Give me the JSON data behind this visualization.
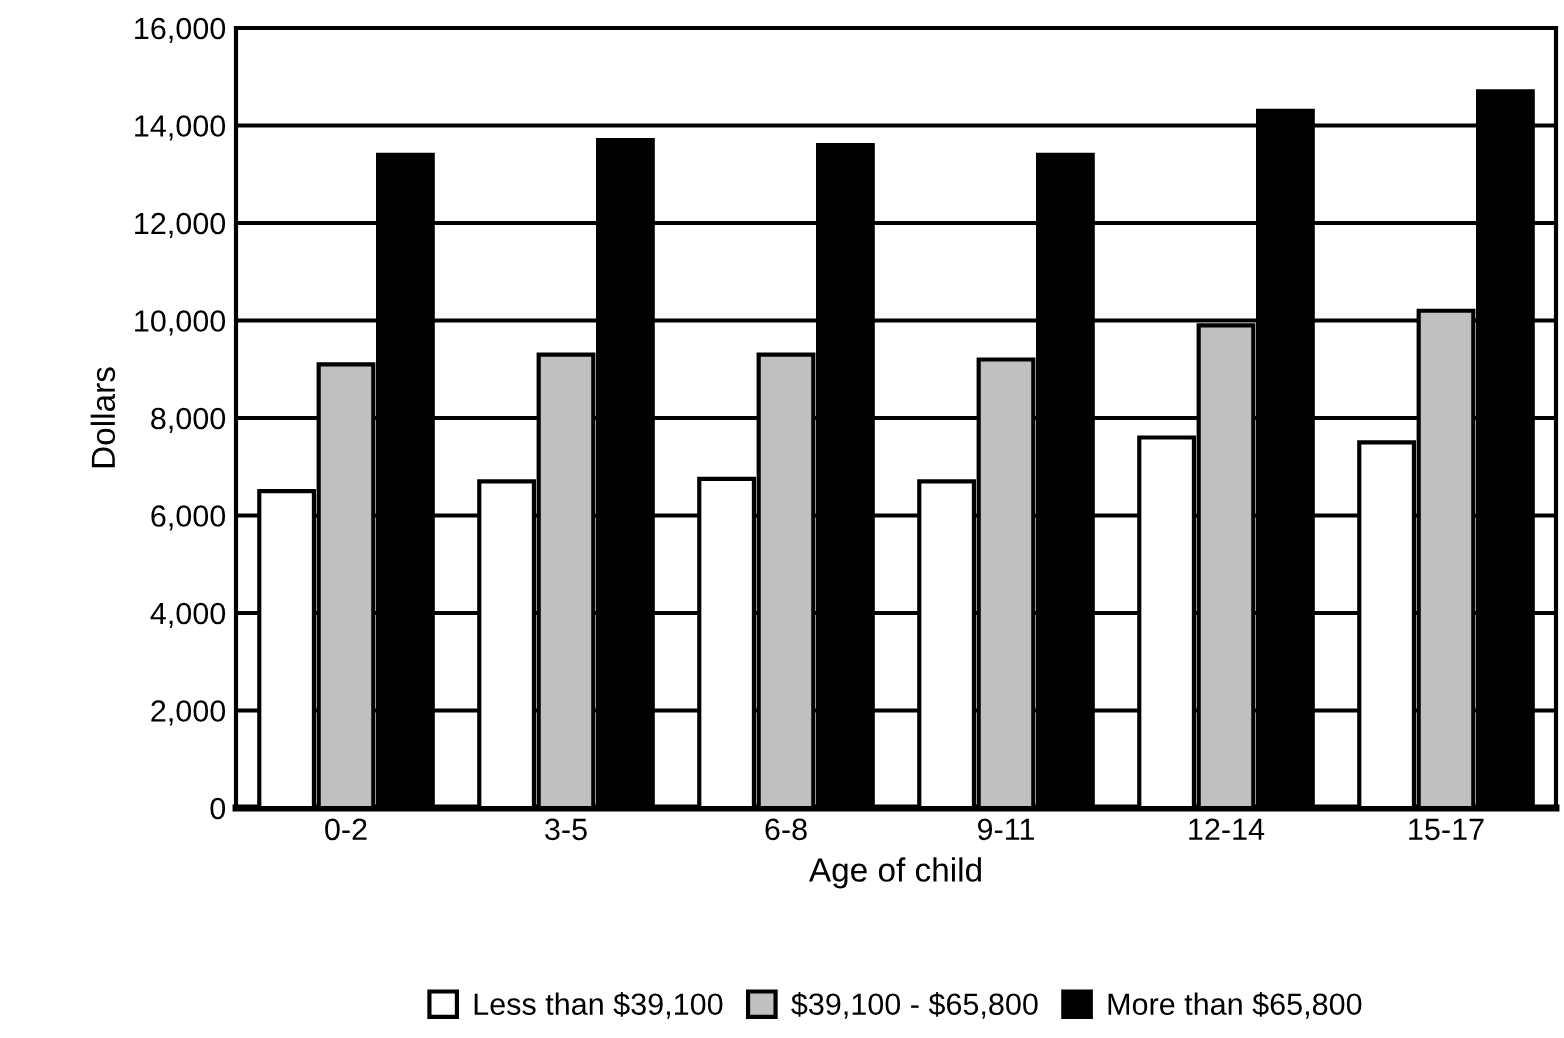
{
  "chart_data": {
    "type": "bar",
    "xlabel": "Age of child",
    "ylabel": "Dollars",
    "categories": [
      "0-2",
      "3-5",
      "6-8",
      "9-11",
      "12-14",
      "15-17"
    ],
    "series": [
      {
        "name": "Less than $39,100",
        "color": "#ffffff",
        "values": [
          6500,
          6700,
          6750,
          6700,
          7600,
          7500
        ]
      },
      {
        "name": "$39,100 - $65,800",
        "color": "#c0c0c0",
        "values": [
          9100,
          9300,
          9300,
          9200,
          9900,
          10200
        ]
      },
      {
        "name": "More than $65,800",
        "color": "#000000",
        "values": [
          13400,
          13700,
          13600,
          13400,
          14300,
          14700
        ]
      }
    ],
    "ylim": [
      0,
      16000
    ],
    "yticks": [
      {
        "value": 0,
        "label": "0"
      },
      {
        "value": 2000,
        "label": "2,000"
      },
      {
        "value": 4000,
        "label": "4,000"
      },
      {
        "value": 6000,
        "label": "6,000"
      },
      {
        "value": 8000,
        "label": "8,000"
      },
      {
        "value": 10000,
        "label": "10,000"
      },
      {
        "value": 12000,
        "label": "12,000"
      },
      {
        "value": 14000,
        "label": "14,000"
      },
      {
        "value": 16000,
        "label": "16,000"
      }
    ],
    "grid": "y",
    "legend": "bottom"
  }
}
